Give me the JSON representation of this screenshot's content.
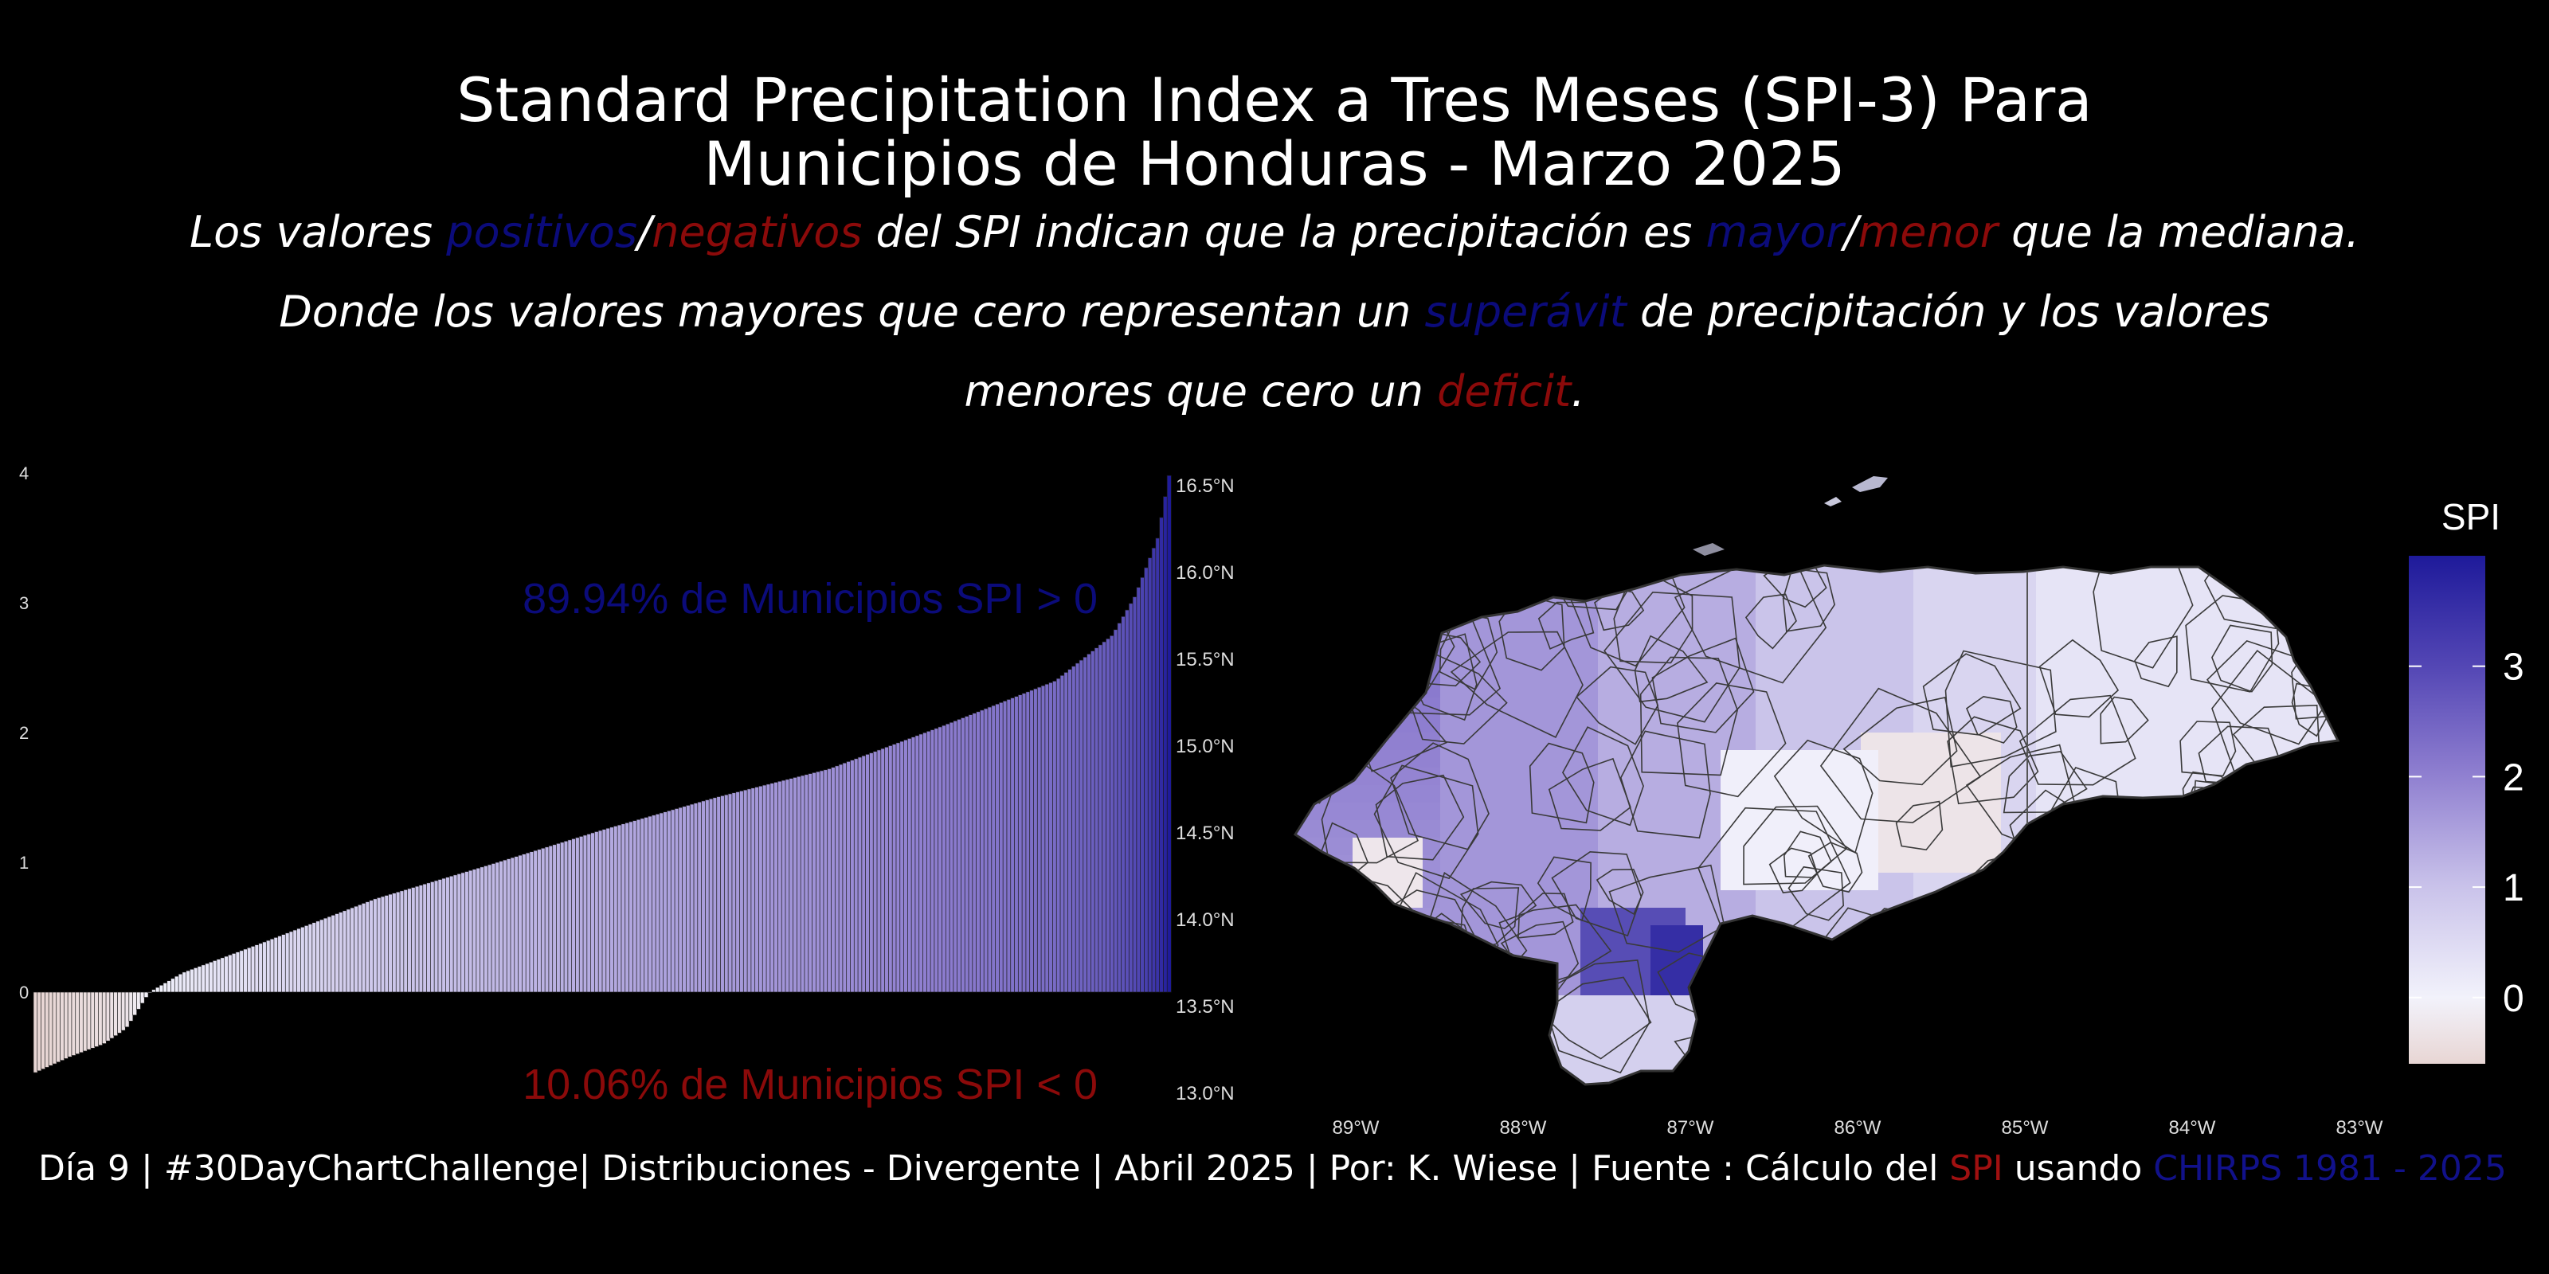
{
  "title": {
    "line1": "Standard Precipitation Index a Tres Meses (SPI-3) Para",
    "line2": "Municipios de Honduras - Marzo 2025"
  },
  "subtitle": {
    "l1_a": "Los valores ",
    "l1_pos": "positivos",
    "l1_slash": "/",
    "l1_neg": "negativos",
    "l1_b": " del SPI indican que la precipitación es ",
    "l1_mayor": "mayor",
    "l1_slash2": "/",
    "l1_menor": "menor",
    "l1_c": " que la mediana.",
    "l2_a": "Donde los valores mayores que cero representan un ",
    "l2_sup": "superávit",
    "l2_b": " de precipitación y los valores",
    "l3_a": "menores que cero un ",
    "l3_def": "deficit",
    "l3_b": "."
  },
  "annotations": {
    "positive": "89.94% de Municipios SPI > 0",
    "negative": "10.06% de Municipios SPI < 0"
  },
  "chart_data": [
    {
      "type": "bar",
      "description_ref": "sorted SPI-3 per municipality",
      "y_ticks": [
        "0",
        "1",
        "2",
        "3",
        "4"
      ],
      "y_tick_values": [
        0,
        1,
        2,
        3,
        4
      ],
      "ylim": [
        -0.65,
        4.0
      ],
      "n_bars": 298,
      "quantiles": [
        [
          0,
          -0.62
        ],
        [
          0.01,
          -0.58
        ],
        [
          0.03,
          -0.5
        ],
        [
          0.06,
          -0.4
        ],
        [
          0.08,
          -0.28
        ],
        [
          0.1006,
          0.0
        ],
        [
          0.13,
          0.15
        ],
        [
          0.2,
          0.38
        ],
        [
          0.3,
          0.72
        ],
        [
          0.4,
          0.98
        ],
        [
          0.5,
          1.25
        ],
        [
          0.6,
          1.5
        ],
        [
          0.7,
          1.72
        ],
        [
          0.8,
          2.05
        ],
        [
          0.9,
          2.4
        ],
        [
          0.95,
          2.75
        ],
        [
          0.97,
          3.05
        ],
        [
          0.99,
          3.5
        ],
        [
          1.0,
          3.98
        ]
      ],
      "colors": {
        "negative": "#e8d6d4",
        "zero": "#f2f2fb",
        "mid": "#8f7fd0",
        "high": "#1e1a9a"
      }
    },
    {
      "type": "map",
      "lat_ticks": [
        "16.5°N",
        "16.0°N",
        "15.5°N",
        "15.0°N",
        "14.5°N",
        "14.0°N",
        "13.5°N",
        "13.0°N"
      ],
      "lon_ticks": [
        "89°W",
        "88°W",
        "87°W",
        "86°W",
        "85°W",
        "84°W",
        "83°W"
      ],
      "legend": {
        "title": "SPI",
        "ticks": [
          "3",
          "2",
          "1",
          "0"
        ],
        "tick_values": [
          3,
          2,
          1,
          0
        ],
        "range": [
          -0.6,
          4.0
        ]
      }
    }
  ],
  "caption": {
    "a": "Día 9 |  #30DayChartChallenge|  Distribuciones - Divergente |  Abril 2025 |  Por: K. Wiese |  Fuente : Cálculo del ",
    "spi": "SPI",
    "b": " usando ",
    "chirps": "CHIRPS 1981 - 2025"
  }
}
